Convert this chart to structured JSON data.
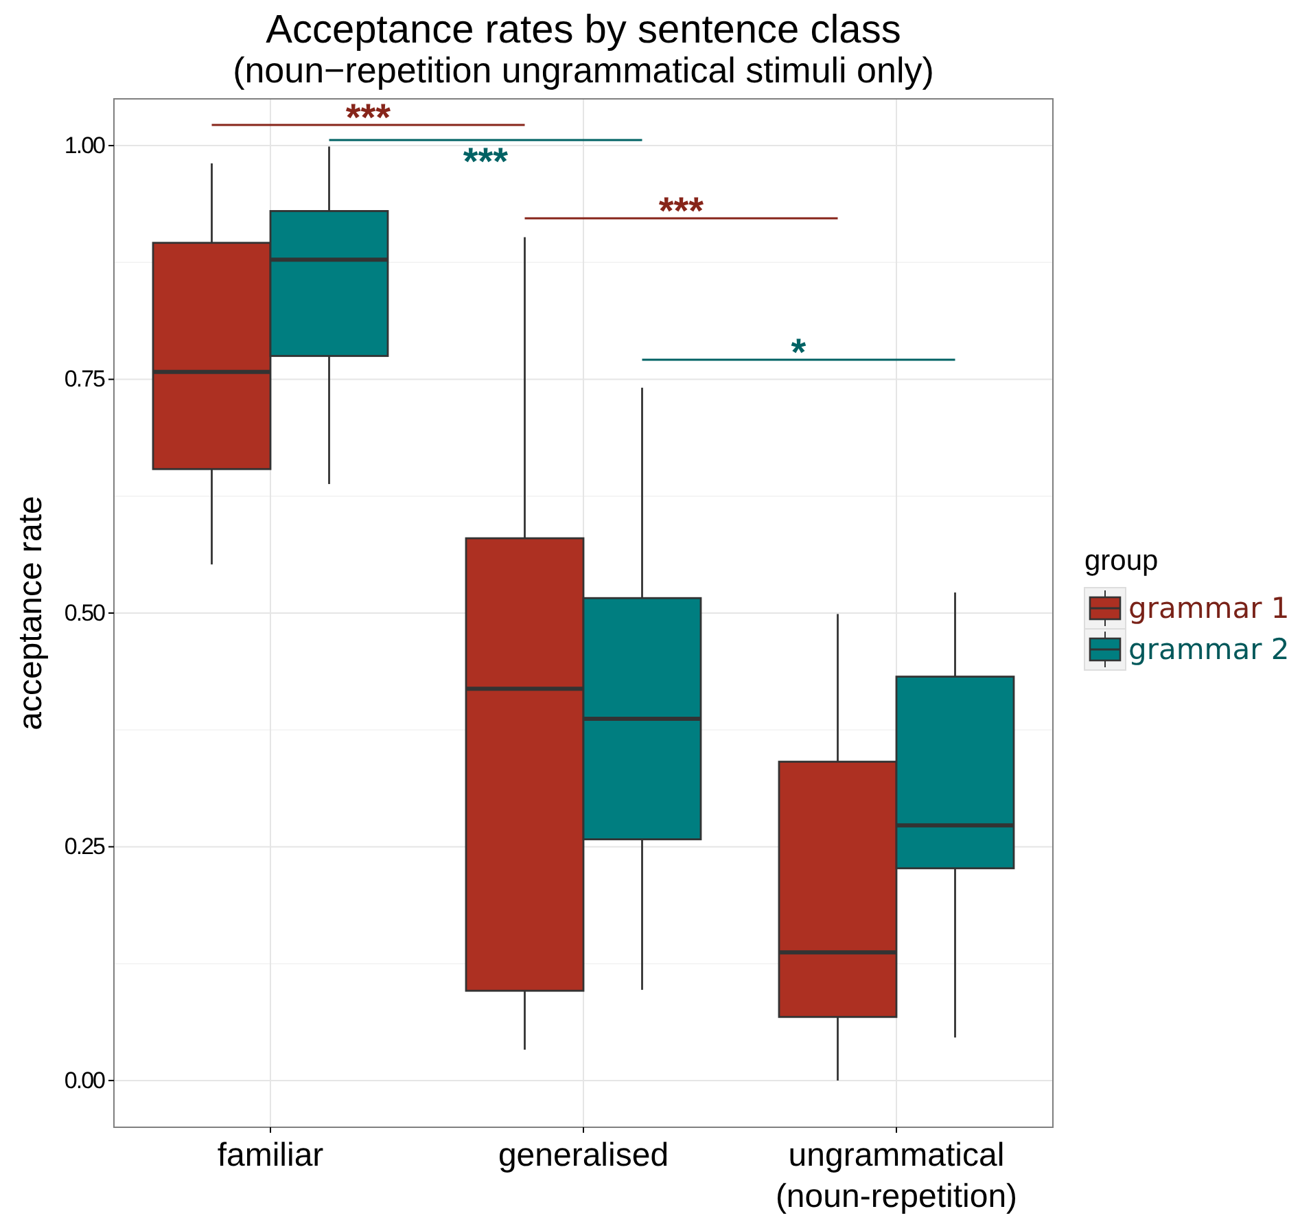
{
  "chart_data": {
    "type": "box",
    "title": "Acceptance rates by sentence class",
    "subtitle": "(noun−repetition ungrammatical stimuli only)",
    "ylabel": "acceptance rate",
    "legend_title": "group",
    "categories": [
      "familiar",
      "generalised",
      "ungrammatical (noun-repetition)"
    ],
    "ylim": [
      -0.05,
      1.05
    ],
    "yticks": [
      {
        "value": 0,
        "label": "0.00"
      },
      {
        "value": 0.25,
        "label": "0.25"
      },
      {
        "value": 0.5,
        "label": "0.50"
      },
      {
        "value": 0.75,
        "label": "0.75"
      },
      {
        "value": 1,
        "label": "1.00"
      }
    ],
    "grid": true,
    "legend": "right",
    "series": [
      {
        "name": "grammar 1",
        "color": "#ad3022",
        "boxes": [
          {
            "low": 0.552,
            "q1": 0.654,
            "median": 0.758,
            "q3": 0.896,
            "high": 0.981
          },
          {
            "low": 0.033,
            "q1": 0.096,
            "median": 0.419,
            "q3": 0.58,
            "high": 0.902
          },
          {
            "low": 0.0,
            "q1": 0.068,
            "median": 0.137,
            "q3": 0.341,
            "high": 0.499
          }
        ]
      },
      {
        "name": "grammar 2",
        "color": "#007e80",
        "boxes": [
          {
            "low": 0.638,
            "q1": 0.775,
            "median": 0.878,
            "q3": 0.93,
            "high": 0.999
          },
          {
            "low": 0.097,
            "q1": 0.258,
            "median": 0.387,
            "q3": 0.516,
            "high": 0.741
          },
          {
            "low": 0.046,
            "q1": 0.227,
            "median": 0.273,
            "q3": 0.432,
            "high": 0.522
          }
        ]
      }
    ],
    "annotations": [
      "***",
      "***",
      "***",
      "*"
    ]
  }
}
